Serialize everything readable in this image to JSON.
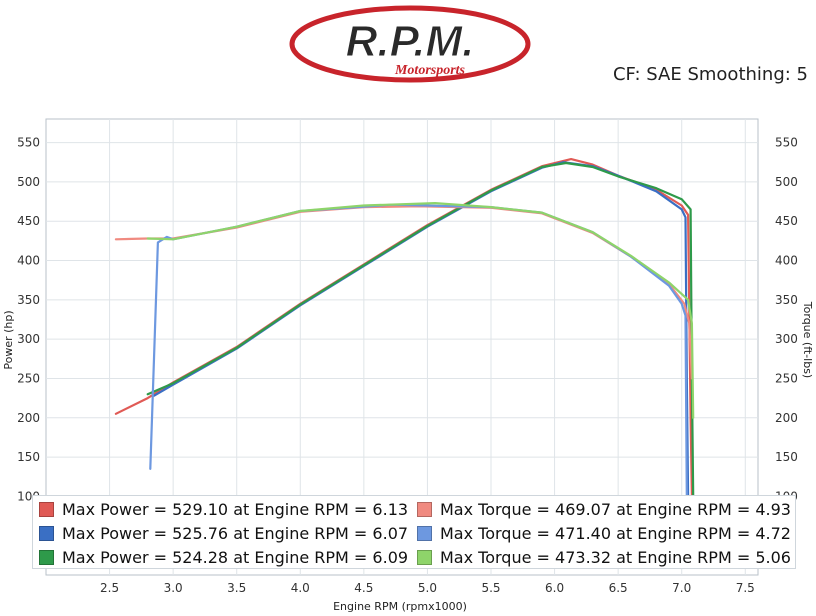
{
  "header": {
    "logo_text": "R.P.M.",
    "logo_sub": "Motorsports",
    "cf_text": "CF: SAE Smoothing: 5"
  },
  "colors": {
    "run1": "#e05a55",
    "run2": "#3a6fc4",
    "run3": "#2e9a4a",
    "run1_light": "#f08a80",
    "run2_light": "#6d98e0",
    "run3_light": "#8ed46a",
    "logo_red": "#c8242b"
  },
  "legend": [
    {
      "text": "Max Power = 529.10 at Engine RPM = 6.13",
      "color": "#e05a55"
    },
    {
      "text": "Max Torque = 469.07 at Engine RPM = 4.93",
      "color": "#f08a80"
    },
    {
      "text": "Max Power = 525.76 at Engine RPM = 6.07",
      "color": "#3a6fc4"
    },
    {
      "text": "Max Torque = 471.40 at Engine RPM = 4.72",
      "color": "#6d98e0"
    },
    {
      "text": "Max Power = 524.28 at Engine RPM = 6.09",
      "color": "#2e9a4a"
    },
    {
      "text": "Max Torque = 473.32 at Engine RPM = 5.06",
      "color": "#8ed46a"
    }
  ],
  "chart_data": {
    "type": "line",
    "xlabel": "Engine RPM (rpmx1000)",
    "ylabel": "Power (hp)",
    "ylabel_right": "Torque (ft-lbs)",
    "xlim": [
      2.0,
      7.6
    ],
    "ylim": [
      0,
      580
    ],
    "x_ticks": [
      2.5,
      3.0,
      3.5,
      4.0,
      4.5,
      5.0,
      5.5,
      6.0,
      6.5,
      7.0,
      7.5
    ],
    "y_ticks": [
      100,
      150,
      200,
      250,
      300,
      350,
      400,
      450,
      500,
      550
    ],
    "y_ticks_right": [
      100,
      150,
      200,
      250,
      300,
      350,
      400,
      450,
      500,
      550
    ],
    "grid": true,
    "series": [
      {
        "name": "Power",
        "color": "#e05a55",
        "x": [
          2.55,
          2.8,
          3.0,
          3.5,
          4.0,
          4.5,
          5.0,
          5.5,
          5.9,
          6.13,
          6.3,
          6.5,
          6.8,
          7.0,
          7.05,
          7.07,
          7.08
        ],
        "y": [
          205,
          225,
          245,
          290,
          345,
          395,
          445,
          490,
          520,
          529,
          522,
          508,
          490,
          470,
          458,
          200,
          100
        ]
      },
      {
        "name": "Power",
        "color": "#3a6fc4",
        "x": [
          2.85,
          3.0,
          3.5,
          4.0,
          4.5,
          5.0,
          5.5,
          5.9,
          6.07,
          6.3,
          6.5,
          6.8,
          7.0,
          7.03,
          7.04,
          7.05
        ],
        "y": [
          228,
          242,
          288,
          343,
          393,
          443,
          488,
          518,
          525,
          520,
          508,
          488,
          465,
          455,
          250,
          100
        ]
      },
      {
        "name": "Power",
        "color": "#2e9a4a",
        "x": [
          2.8,
          3.0,
          3.5,
          4.0,
          4.5,
          5.0,
          5.5,
          5.9,
          6.09,
          6.3,
          6.5,
          6.8,
          7.0,
          7.07,
          7.08,
          7.09
        ],
        "y": [
          230,
          244,
          289,
          344,
          394,
          444,
          489,
          519,
          524,
          519,
          507,
          492,
          478,
          465,
          250,
          100
        ]
      },
      {
        "name": "Torque",
        "color": "#f08a80",
        "x": [
          2.55,
          2.8,
          3.0,
          3.5,
          4.0,
          4.5,
          4.93,
          5.5,
          5.9,
          6.3,
          6.6,
          6.9,
          7.02,
          7.06,
          7.08
        ],
        "y": [
          427,
          428,
          428,
          442,
          462,
          468,
          469,
          467,
          460,
          435,
          405,
          370,
          345,
          320,
          250
        ]
      },
      {
        "name": "Torque",
        "color": "#6d98e0",
        "x": [
          2.82,
          2.88,
          2.95,
          3.0,
          3.5,
          4.0,
          4.72,
          5.5,
          5.9,
          6.3,
          6.6,
          6.9,
          7.0,
          7.03,
          7.04
        ],
        "y": [
          135,
          423,
          430,
          427,
          443,
          463,
          471,
          468,
          461,
          436,
          405,
          368,
          345,
          330,
          100
        ]
      },
      {
        "name": "Torque",
        "color": "#8ed46a",
        "x": [
          2.8,
          3.0,
          3.5,
          4.0,
          4.5,
          5.06,
          5.5,
          5.9,
          6.3,
          6.6,
          6.9,
          7.05,
          7.08,
          7.09
        ],
        "y": [
          428,
          427,
          443,
          463,
          470,
          473,
          468,
          461,
          436,
          406,
          372,
          350,
          320,
          200
        ]
      }
    ]
  }
}
